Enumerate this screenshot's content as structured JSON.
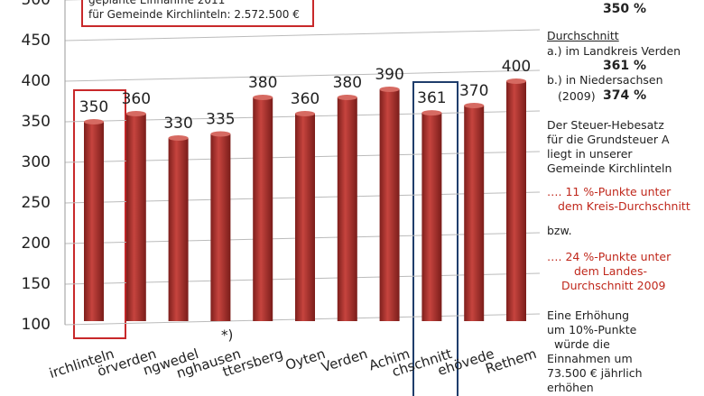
{
  "chart_data": {
    "type": "bar",
    "categories": [
      "irchlinteln",
      "örverden",
      "ngwedel",
      "nghausen",
      "ttersberg",
      "Oyten",
      "Verden",
      "Achim",
      "chschnitt",
      "ehövede",
      "Rethem"
    ],
    "values": [
      350,
      360,
      330,
      335,
      380,
      360,
      380,
      390,
      361,
      370,
      400
    ],
    "color": "#b5302c",
    "ylim": [
      100,
      500
    ],
    "yticks": [
      100,
      150,
      200,
      250,
      300,
      350,
      400,
      450,
      500
    ],
    "grid": true,
    "note": "*)",
    "box_lines": [
      "geplante Einnahme 2011",
      "für Gemeinde Kirchlinteln: 2.572.500 €"
    ]
  },
  "panel": [
    "350 %",
    "Durchschnitt",
    "a.) im Landkreis Verden",
    "361 %",
    "b.) in Niedersachsen",
    "(2009)",
    "374 %",
    "Der Steuer-Hebesatz",
    "für die Grundsteuer A",
    "liegt in unserer",
    "Gemeinde Kirchlinteln",
    "…. 11 %-Punkte unter",
    "dem Kreis-Durchschnitt",
    "bzw.",
    "…. 24 %-Punkte unter",
    "dem Landes-",
    "Durchschnitt 2009",
    "Eine Erhöhung",
    "um 10%-Punkte",
    "würde  die",
    "Einnahmen um",
    "73.500 € jährlich",
    "erhöhen"
  ]
}
